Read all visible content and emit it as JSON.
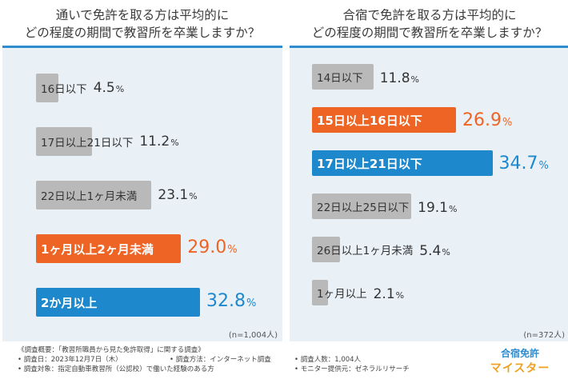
{
  "chart_data": [
    {
      "type": "bar",
      "title": [
        "通いで免許を取る方は平均的に",
        "どの程度の期間で教習所を卒業しますか？"
      ],
      "categories": [
        "16日以下",
        "17日以上21日以下",
        "22日以上1ヶ月未満",
        "1ヶ月以上2ヶ月未満",
        "2か月以上"
      ],
      "values": [
        4.5,
        11.2,
        23.1,
        29.0,
        32.8
      ],
      "value_labels": [
        "4.5",
        "11.2",
        "23.1",
        "29.0",
        "32.8"
      ],
      "unit": "%",
      "highlight": [
        null,
        null,
        null,
        "#ee6424",
        "#1e88cc"
      ],
      "bar_color": "#b9b9b9",
      "n_note": "(n=1,004人)"
    },
    {
      "type": "bar",
      "title": [
        "合宿で免許を取る方は平均的に",
        "どの程度の期間で教習所を卒業しますか？"
      ],
      "categories": [
        "14日以下",
        "15日以上16日以下",
        "17日以上21日以下",
        "22日以上25日以下",
        "26日以上1ヶ月未満",
        "1ヶ月以上"
      ],
      "values": [
        11.8,
        26.9,
        34.7,
        19.1,
        5.4,
        2.1
      ],
      "value_labels": [
        "11.8",
        "26.9",
        "34.7",
        "19.1",
        "5.4",
        "2.1"
      ],
      "unit": "%",
      "highlight": [
        null,
        "#ee6424",
        "#1e88cc",
        null,
        null,
        null
      ],
      "bar_color": "#b9b9b9",
      "n_note": "(n=372人)"
    }
  ],
  "footer": {
    "col1": [
      "《調査概要：「教習所職員から見た免許取得」に関する調査》",
      "• 調査日：2023年12月7日（木）",
      "• 調査対象：指定自動車教習所（公認校）で働いた経験のある方"
    ],
    "col2": [
      "• 調査方法：インターネット調査"
    ],
    "col3": [
      "• 調査人数：1,004人",
      "• モニター提供元：ゼネラルリサーチ"
    ]
  },
  "logo": {
    "line1": "合宿免許",
    "line2": "マイスター"
  }
}
